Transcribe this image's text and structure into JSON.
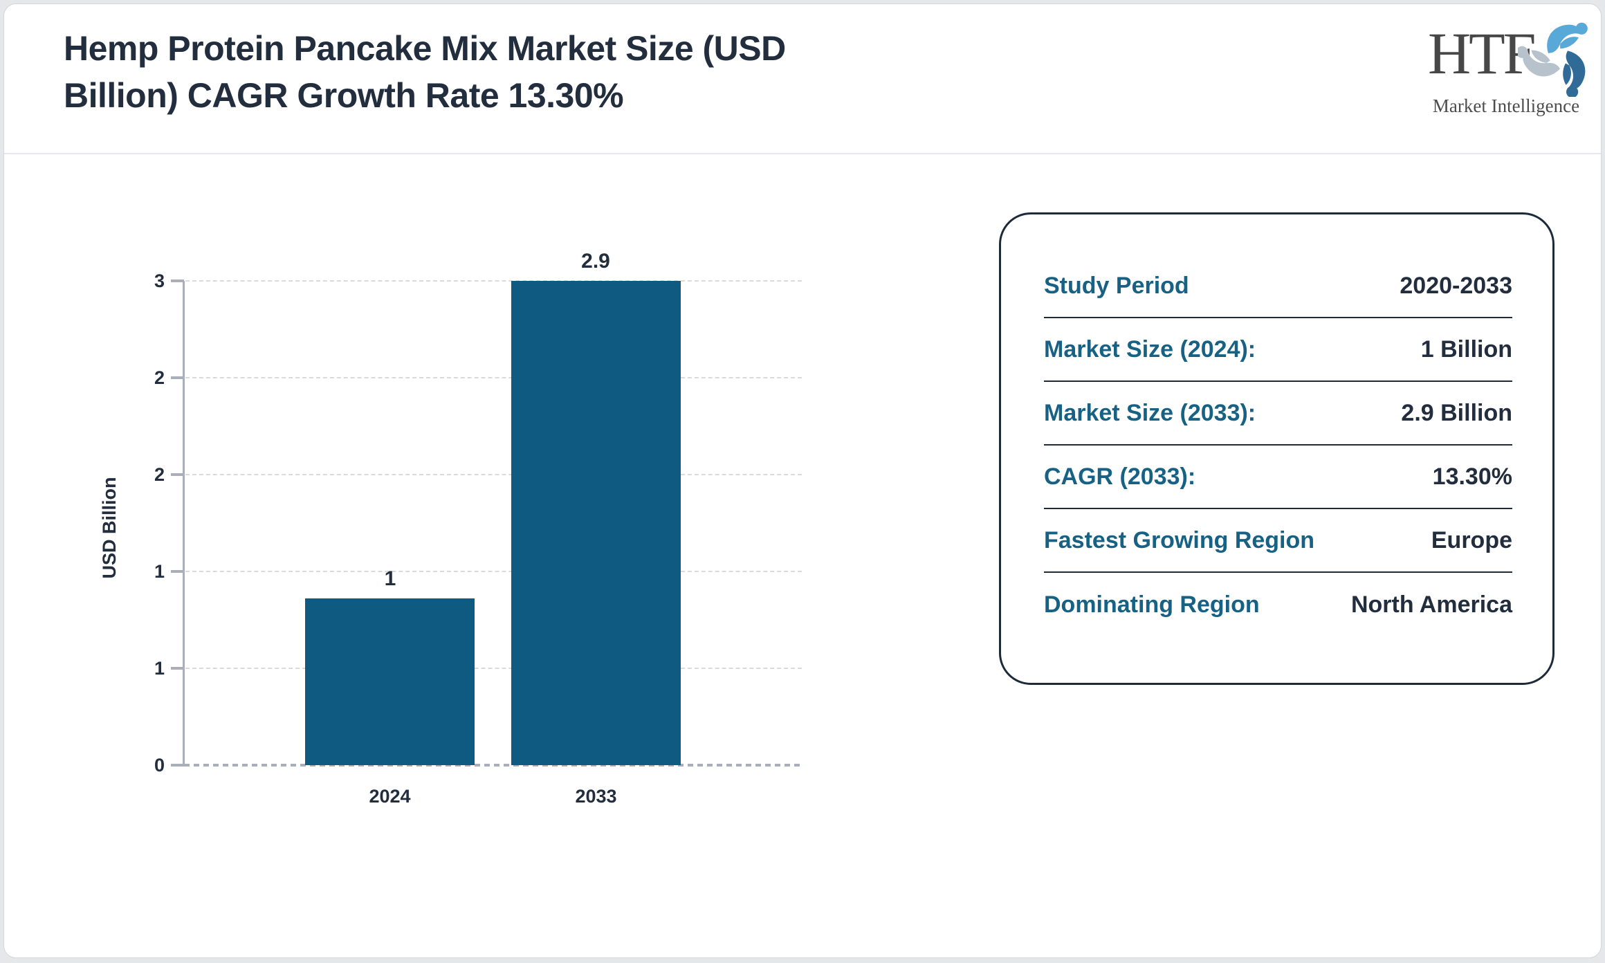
{
  "header": {
    "title_line1": "Hemp Protein Pancake Mix Market Size (USD",
    "title_line2": "Billion) CAGR Growth Rate 13.30%"
  },
  "logo": {
    "name": "HTF",
    "subtitle": "Market Intelligence",
    "colors": {
      "text": "#474747",
      "swirl_light_blue": "#58a8d8",
      "swirl_dark_blue": "#2f6b96",
      "swirl_gray": "#b7c2cc"
    }
  },
  "chart_data": {
    "type": "bar",
    "categories": [
      "2024",
      "2033"
    ],
    "values": [
      1,
      2.9
    ],
    "bar_labels": [
      "1",
      "2.9"
    ],
    "title": "",
    "xlabel": "",
    "ylabel": "USD Billion",
    "ylim": [
      0,
      2.9
    ],
    "ytick_labels_bottom_up": [
      "0",
      "1",
      "1",
      "2",
      "2",
      "3"
    ],
    "grid": "horizontal-dashed",
    "legend": "none",
    "bar_color": "#0e5a80"
  },
  "info_panel": {
    "rows": [
      {
        "label": "Study Period",
        "value": "2020-2033"
      },
      {
        "label": "Market Size (2024):",
        "value": "1 Billion"
      },
      {
        "label": "Market Size (2033):",
        "value": "2.9 Billion"
      },
      {
        "label": "CAGR (2033):",
        "value": "13.30%"
      },
      {
        "label": "Fastest Growing Region",
        "value": "Europe"
      },
      {
        "label": "Dominating Region",
        "value": "North America"
      }
    ]
  },
  "colors": {
    "accent_teal": "#176284",
    "dark_navy": "#222d3d",
    "bar": "#0e5a80",
    "axis_gray": "#a9aeb8",
    "gridline": "#dadada",
    "page_border": "#d4d6db"
  }
}
